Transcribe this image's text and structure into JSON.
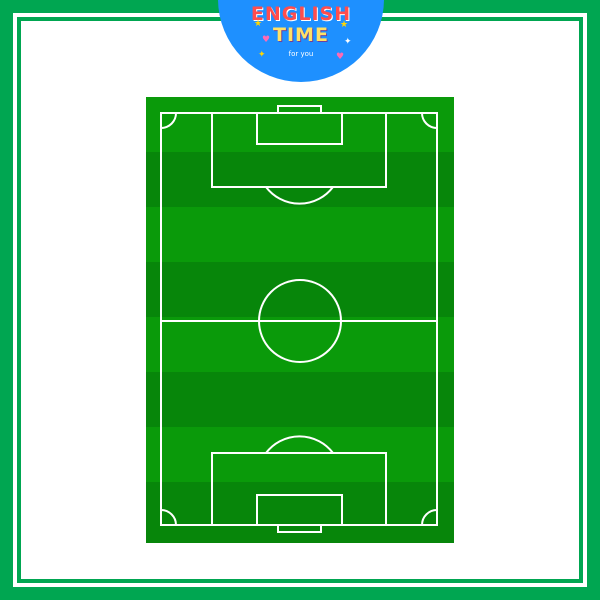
{
  "logo": {
    "line1": "ENGLISH",
    "line2": "TIME",
    "line3": "for you"
  },
  "colors": {
    "frame": "#00a651",
    "badge": "#1e90ff",
    "field_light": "#0a9a0a",
    "field_dark": "#07860a",
    "lines": "#ffffff"
  },
  "icons": [
    "soccer-field-icon",
    "star-icon",
    "heart-icon"
  ]
}
